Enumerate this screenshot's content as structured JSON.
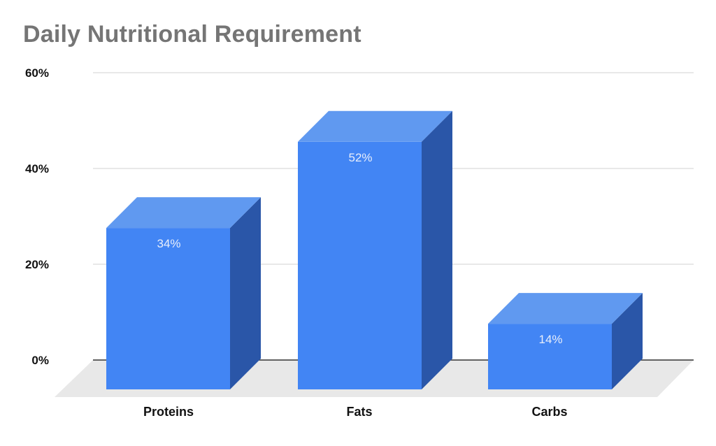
{
  "chart_data": {
    "type": "bar",
    "title": "Daily Nutritional Requirement",
    "categories": [
      "Proteins",
      "Fats",
      "Carbs"
    ],
    "values": [
      34,
      52,
      14
    ],
    "data_labels": [
      "34%",
      "52%",
      "14%"
    ],
    "yticks": [
      "0%",
      "20%",
      "40%",
      "60%"
    ],
    "ytick_values": [
      0,
      20,
      40,
      60
    ],
    "ylim": [
      0,
      60
    ],
    "grid": true,
    "style_3d": true,
    "colors": {
      "bar_front": "#4285F4",
      "bar_top": "#6099F0",
      "bar_side": "#2A56A8",
      "floor": "#E8E8E8",
      "grid": "#D0D0D0",
      "axis": "#333333",
      "title": "#757575",
      "label": "#111111",
      "data_label": "#E8EEFB"
    }
  }
}
